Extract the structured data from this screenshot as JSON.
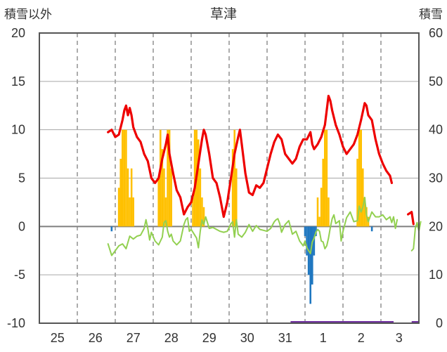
{
  "chart_data": {
    "type": "bar+line",
    "title": "草津",
    "ylabel_left": "積雪以外",
    "ylabel_right": "積雪",
    "ylim_left": [
      -10,
      20
    ],
    "ylim_right": [
      0,
      60
    ],
    "yticks_left": [
      "20",
      "15",
      "10",
      "5",
      "0",
      "-5",
      "-10"
    ],
    "yticks_right": [
      "60",
      "50",
      "40",
      "30",
      "20",
      "10",
      "0"
    ],
    "xticks": [
      "25",
      "26",
      "27",
      "28",
      "29",
      "30",
      "31",
      "1",
      "2",
      "3"
    ],
    "x_unit": "day (hourly data, x = fractional day index, 0 = start of 25th)",
    "grid": true,
    "colors": {
      "snow_depth": "#ee0000",
      "temperature": "#92d050",
      "snowfall": "#ffc000",
      "precipitation": "#1f77c0",
      "sunshine": "#7030a0",
      "grid": "#7f7f7f",
      "axis": "#555555"
    },
    "series": [
      {
        "key": "snowfall",
        "axis": "left",
        "kind": "bar",
        "points": [
          [
            2.2,
            4
          ],
          [
            2.25,
            7
          ],
          [
            2.3,
            10
          ],
          [
            2.35,
            10
          ],
          [
            2.4,
            10
          ],
          [
            2.45,
            6
          ],
          [
            2.5,
            3
          ],
          [
            2.55,
            6
          ],
          [
            2.6,
            3
          ],
          [
            3.3,
            5
          ],
          [
            3.35,
            10
          ],
          [
            3.4,
            8
          ],
          [
            3.45,
            6
          ],
          [
            3.5,
            3
          ],
          [
            3.55,
            10
          ],
          [
            3.6,
            10
          ],
          [
            3.65,
            6
          ],
          [
            4.25,
            3
          ],
          [
            4.3,
            10
          ],
          [
            4.35,
            10
          ],
          [
            4.4,
            9
          ],
          [
            4.45,
            6
          ],
          [
            4.5,
            3
          ],
          [
            4.55,
            2
          ],
          [
            5.35,
            8
          ],
          [
            5.4,
            10
          ],
          [
            5.45,
            6
          ],
          [
            7.7,
            3
          ],
          [
            7.75,
            1
          ],
          [
            7.8,
            4
          ],
          [
            7.85,
            7
          ],
          [
            7.9,
            10
          ],
          [
            7.95,
            10
          ],
          [
            8.0,
            3
          ],
          [
            8.8,
            7
          ],
          [
            8.85,
            10
          ],
          [
            8.9,
            10
          ],
          [
            8.95,
            6
          ],
          [
            9.0,
            3
          ],
          [
            9.05,
            2
          ],
          [
            9.1,
            1
          ]
        ]
      },
      {
        "key": "precipitation",
        "axis": "left",
        "kind": "bar",
        "points": [
          [
            2.0,
            -0.5
          ],
          [
            7.35,
            -1
          ],
          [
            7.4,
            -3
          ],
          [
            7.45,
            -5
          ],
          [
            7.5,
            -8
          ],
          [
            7.55,
            -6
          ],
          [
            7.6,
            -3
          ],
          [
            7.65,
            -1
          ],
          [
            9.2,
            -0.5
          ]
        ]
      },
      {
        "key": "snow_depth",
        "axis": "right",
        "kind": "line",
        "points": [
          [
            1.9,
            39.5
          ],
          [
            2.0,
            40
          ],
          [
            2.1,
            38.5
          ],
          [
            2.2,
            39
          ],
          [
            2.3,
            42
          ],
          [
            2.35,
            44
          ],
          [
            2.4,
            45
          ],
          [
            2.45,
            43
          ],
          [
            2.5,
            44.5
          ],
          [
            2.55,
            43
          ],
          [
            2.6,
            40.5
          ],
          [
            2.7,
            38.5
          ],
          [
            2.8,
            37.5
          ],
          [
            2.9,
            35
          ],
          [
            3.0,
            33.5
          ],
          [
            3.1,
            30
          ],
          [
            3.2,
            29
          ],
          [
            3.3,
            30
          ],
          [
            3.4,
            34
          ],
          [
            3.5,
            37
          ],
          [
            3.55,
            39
          ],
          [
            3.6,
            35
          ],
          [
            3.7,
            31
          ],
          [
            3.8,
            27.5
          ],
          [
            3.9,
            26
          ],
          [
            4.0,
            22.5
          ],
          [
            4.1,
            24
          ],
          [
            4.2,
            25
          ],
          [
            4.3,
            28
          ],
          [
            4.4,
            33
          ],
          [
            4.5,
            38
          ],
          [
            4.55,
            40
          ],
          [
            4.6,
            39
          ],
          [
            4.7,
            35
          ],
          [
            4.8,
            30
          ],
          [
            4.9,
            29
          ],
          [
            5.0,
            26
          ],
          [
            5.1,
            22
          ],
          [
            5.2,
            25
          ],
          [
            5.3,
            30
          ],
          [
            5.4,
            35
          ],
          [
            5.5,
            38.5
          ],
          [
            5.55,
            40
          ],
          [
            5.6,
            37
          ],
          [
            5.7,
            31
          ],
          [
            5.8,
            27
          ],
          [
            5.9,
            26.5
          ],
          [
            6.0,
            28.5
          ],
          [
            6.1,
            28
          ],
          [
            6.2,
            29
          ],
          [
            6.3,
            32
          ],
          [
            6.4,
            35
          ],
          [
            6.5,
            37.5
          ],
          [
            6.6,
            39
          ],
          [
            6.7,
            38
          ],
          [
            6.8,
            35
          ],
          [
            6.9,
            34
          ],
          [
            7.0,
            33
          ],
          [
            7.1,
            34
          ],
          [
            7.2,
            36.5
          ],
          [
            7.3,
            38
          ],
          [
            7.4,
            38
          ],
          [
            7.5,
            39.5
          ],
          [
            7.55,
            37
          ],
          [
            7.6,
            36
          ],
          [
            7.7,
            37
          ],
          [
            7.8,
            38.5
          ],
          [
            7.9,
            41
          ],
          [
            8.0,
            47
          ],
          [
            8.05,
            46
          ],
          [
            8.1,
            44
          ],
          [
            8.2,
            41
          ],
          [
            8.3,
            39
          ],
          [
            8.4,
            36.5
          ],
          [
            8.5,
            35
          ],
          [
            8.6,
            36
          ],
          [
            8.7,
            37
          ],
          [
            8.8,
            39
          ],
          [
            8.9,
            42
          ],
          [
            9.0,
            45.5
          ],
          [
            9.05,
            45
          ],
          [
            9.1,
            43
          ],
          [
            9.2,
            42
          ],
          [
            9.3,
            38
          ],
          [
            9.4,
            35
          ],
          [
            9.5,
            33
          ],
          [
            9.6,
            31.5
          ],
          [
            9.7,
            30.5
          ],
          [
            9.75,
            29
          ]
        ],
        "points2": [
          [
            10.2,
            22.5
          ],
          [
            10.3,
            23
          ],
          [
            10.35,
            20.5
          ]
        ]
      },
      {
        "key": "temperature",
        "axis": "left",
        "kind": "line",
        "points": [
          [
            1.9,
            -1.8
          ],
          [
            2.0,
            -3
          ],
          [
            2.1,
            -2.5
          ],
          [
            2.2,
            -2
          ],
          [
            2.3,
            -1.8
          ],
          [
            2.4,
            -2.3
          ],
          [
            2.5,
            -1
          ],
          [
            2.6,
            -1.3
          ],
          [
            2.7,
            -1
          ],
          [
            2.8,
            -0.9
          ],
          [
            2.9,
            -0.2
          ],
          [
            2.95,
            0.7
          ],
          [
            3.0,
            -0.2
          ],
          [
            3.05,
            -1.4
          ],
          [
            3.1,
            -0.6
          ],
          [
            3.2,
            -1.5
          ],
          [
            3.3,
            -1.9
          ],
          [
            3.4,
            -1.1
          ],
          [
            3.45,
            0.4
          ],
          [
            3.5,
            0.6
          ],
          [
            3.55,
            -0.5
          ],
          [
            3.6,
            -1.1
          ],
          [
            3.65,
            -0.8
          ],
          [
            3.7,
            -1.5
          ],
          [
            3.8,
            -1.9
          ],
          [
            3.9,
            -1.5
          ],
          [
            4.0,
            0.2
          ],
          [
            4.05,
            0.7
          ],
          [
            4.1,
            0.9
          ],
          [
            4.15,
            -0.5
          ],
          [
            4.2,
            -0.3
          ],
          [
            4.3,
            -0.9
          ],
          [
            4.35,
            -1.2
          ],
          [
            4.4,
            -2.2
          ],
          [
            4.45,
            -0.5
          ],
          [
            4.5,
            0.7
          ],
          [
            4.55,
            0.2
          ],
          [
            4.6,
            1.0
          ],
          [
            4.7,
            -0.2
          ],
          [
            4.8,
            -0.1
          ],
          [
            4.9,
            -0.3
          ],
          [
            5.0,
            -0.5
          ],
          [
            5.1,
            -0.6
          ],
          [
            5.2,
            -0.5
          ],
          [
            5.3,
            0.3
          ],
          [
            5.35,
            0.5
          ],
          [
            5.4,
            -1.1
          ],
          [
            5.45,
            0.7
          ],
          [
            5.5,
            -0.8
          ],
          [
            5.6,
            -1.1
          ],
          [
            5.7,
            -0.6
          ],
          [
            5.8,
            0.2
          ],
          [
            5.9,
            -0.5
          ],
          [
            6.0,
            0.1
          ],
          [
            6.1,
            -0.3
          ],
          [
            6.2,
            -0.4
          ],
          [
            6.3,
            -0.5
          ],
          [
            6.4,
            -0.2
          ],
          [
            6.5,
            0.5
          ],
          [
            6.55,
            0.7
          ],
          [
            6.6,
            0.8
          ],
          [
            6.65,
            0.3
          ],
          [
            6.7,
            -0.6
          ],
          [
            6.8,
            0.2
          ],
          [
            6.9,
            0.6
          ],
          [
            7.0,
            -0.8
          ],
          [
            7.1,
            -0.5
          ],
          [
            7.2,
            -1.5
          ],
          [
            7.3,
            -2.0
          ],
          [
            7.35,
            -1.5
          ],
          [
            7.4,
            -2.2
          ],
          [
            7.45,
            -2.5
          ],
          [
            7.5,
            -2.8
          ],
          [
            7.55,
            -1.6
          ],
          [
            7.6,
            -1.2
          ],
          [
            7.65,
            -0.6
          ],
          [
            7.7,
            -0.3
          ],
          [
            7.75,
            -0.5
          ],
          [
            7.8,
            -1.5
          ],
          [
            7.85,
            -1.6
          ],
          [
            7.9,
            -2.3
          ],
          [
            7.95,
            -2.0
          ],
          [
            8.0,
            -1.2
          ],
          [
            8.05,
            -0.1
          ],
          [
            8.1,
            0.8
          ],
          [
            8.15,
            1.2
          ],
          [
            8.2,
            0.3
          ],
          [
            8.3,
            0.6
          ],
          [
            8.35,
            -1.5
          ],
          [
            8.4,
            -0.5
          ],
          [
            8.5,
            0.9
          ],
          [
            8.6,
            1.5
          ],
          [
            8.7,
            0.5
          ],
          [
            8.8,
            0.6
          ],
          [
            8.85,
            2.1
          ],
          [
            8.9,
            1.5
          ],
          [
            8.95,
            2.0
          ],
          [
            9.0,
            3.0
          ],
          [
            9.05,
            1.2
          ],
          [
            9.1,
            0.5
          ],
          [
            9.2,
            1.5
          ],
          [
            9.3,
            1.0
          ],
          [
            9.4,
            1.0
          ],
          [
            9.5,
            1.2
          ],
          [
            9.6,
            0.7
          ],
          [
            9.7,
            1.0
          ],
          [
            9.75,
            0.4
          ],
          [
            9.8,
            1.0
          ],
          [
            9.85,
            -0.2
          ],
          [
            9.9,
            0.7
          ]
        ],
        "points2": [
          [
            10.3,
            -2.5
          ],
          [
            10.35,
            -2.3
          ],
          [
            10.4,
            -0.2
          ],
          [
            10.45,
            0.4
          ],
          [
            10.5,
            -0.5
          ],
          [
            10.55,
            0.5
          ]
        ]
      },
      {
        "key": "sunshine",
        "axis": "left",
        "kind": "band",
        "segments": [
          [
            6.95,
            9.8
          ],
          [
            10.3,
            10.5
          ]
        ]
      }
    ]
  }
}
